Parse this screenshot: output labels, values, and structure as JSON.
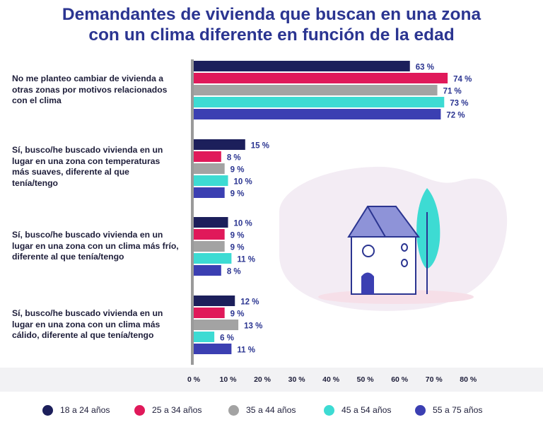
{
  "chart_data": {
    "type": "bar",
    "orientation": "horizontal",
    "title": [
      "Demandantes de vivienda que buscan en una zona",
      "con un clima diferente en función de la edad"
    ],
    "categories": [
      "No me planteo cambiar de vivienda a otras zonas por motivos relacionados con el clima",
      "Sí, busco/he buscado vivienda en un lugar en una zona con temperaturas más suaves, diferente al que tenía/tengo",
      "Sí, busco/he buscado vivienda en un lugar en una zona con un clima más frío, diferente al que tenía/tengo",
      "Sí, busco/he buscado vivienda en un lugar en una zona con un clima más cálido, diferente al que tenía/tengo"
    ],
    "category_lines": [
      [
        "No me planteo cambiar de vivienda a",
        "otras zonas por motivos relacionados",
        "con el clima"
      ],
      [
        "Sí, busco/he buscado vivienda en un",
        "lugar en una zona con temperaturas",
        "más suaves, diferente al que",
        "tenía/tengo"
      ],
      [
        "Sí, busco/he buscado vivienda en un",
        "lugar en una zona con un clima más frío,",
        "diferente al que tenía/tengo"
      ],
      [
        "Sí, busco/he buscado vivienda en un",
        "lugar en una zona con un clima más",
        "cálido, diferente al que tenía/tengo"
      ]
    ],
    "series": [
      {
        "name": "18 a 24 años",
        "color": "#1c1f5b",
        "values": [
          63,
          15,
          10,
          12
        ]
      },
      {
        "name": "25 a 34 años",
        "color": "#e0195a",
        "values": [
          74,
          8,
          9,
          9
        ]
      },
      {
        "name": "35 a 44 años",
        "color": "#a3a3a3",
        "values": [
          71,
          9,
          9,
          13
        ]
      },
      {
        "name": "45 a 54 años",
        "color": "#3ddbd3",
        "values": [
          73,
          10,
          11,
          6
        ]
      },
      {
        "name": "55 a 75 años",
        "color": "#3b3fb2",
        "values": [
          72,
          9,
          8,
          11
        ]
      }
    ],
    "value_suffix": " %",
    "xlim": [
      0,
      80
    ],
    "xticks": [
      0,
      10,
      20,
      30,
      40,
      50,
      60,
      70,
      80
    ],
    "xtick_labels": [
      "0 %",
      "10 %",
      "20 %",
      "30 %",
      "40 %",
      "50 %",
      "60 %",
      "70 %",
      "80 %"
    ],
    "legend_position": "bottom",
    "grid": false
  },
  "illustration": {
    "name": "house-and-tree",
    "colors": {
      "blob": "#f3ecf4",
      "house": "#8e93d8",
      "door": "#3b3fb2",
      "outline": "#2b3591",
      "tree": "#3ddbd3"
    }
  }
}
